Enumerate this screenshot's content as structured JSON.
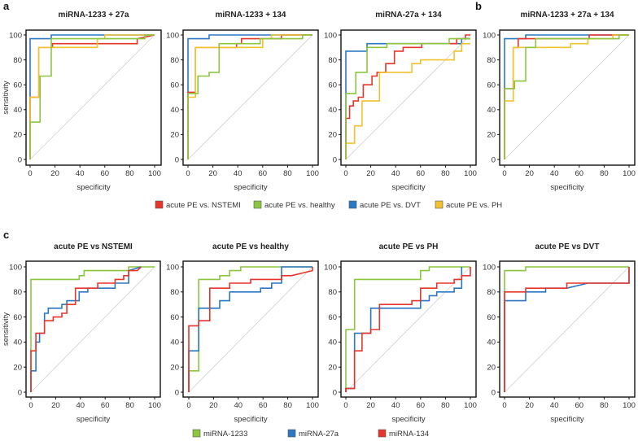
{
  "panel_labels": {
    "a": "a",
    "b": "b",
    "c": "c"
  },
  "legend_top": [
    {
      "label": "acute PE vs. NSTEMI",
      "color": "#e8352b"
    },
    {
      "label": "acute PE vs. healthy",
      "color": "#8cc63f"
    },
    {
      "label": "acute PE vs. DVT",
      "color": "#2a78c4"
    },
    {
      "label": "acute PE vs. PH",
      "color": "#f2c12e"
    }
  ],
  "legend_bottom": [
    {
      "label": "miRNA-1233",
      "color": "#8cc63f"
    },
    {
      "label": "miRNA-27a",
      "color": "#2a78c4"
    },
    {
      "label": "miRNA-134",
      "color": "#e8352b"
    }
  ],
  "chart_data": [
    {
      "type": "line",
      "title": "miRNA-1233 + 27a",
      "xlabel": "specificity",
      "ylabel": "sensitivity",
      "xlim": [
        0,
        100
      ],
      "ylim": [
        0,
        100
      ],
      "xticks": [
        0,
        20,
        40,
        60,
        80,
        100
      ],
      "yticks": [
        0,
        20,
        40,
        60,
        80,
        100
      ],
      "diagonal": true,
      "series": [
        {
          "name": "acute PE vs. DVT",
          "color": "#2a78c4",
          "x": [
            0,
            0,
            17,
            17,
            60,
            100
          ],
          "y": [
            0,
            97,
            97,
            100,
            100,
            100
          ]
        },
        {
          "name": "acute PE vs. NSTEMI",
          "color": "#e8352b",
          "x": [
            0,
            0,
            7,
            7,
            18,
            18,
            86,
            86,
            100
          ],
          "y": [
            0,
            50,
            50,
            90,
            90,
            93,
            93,
            97,
            100
          ]
        },
        {
          "name": "acute PE vs. PH",
          "color": "#f2c12e",
          "x": [
            0,
            0,
            7,
            7,
            54,
            54,
            60,
            60,
            100
          ],
          "y": [
            0,
            50,
            50,
            90,
            90,
            97,
            97,
            100,
            100
          ]
        },
        {
          "name": "acute PE vs. healthy",
          "color": "#8cc63f",
          "x": [
            0,
            0,
            8,
            8,
            17,
            17,
            92,
            92,
            100
          ],
          "y": [
            0,
            30,
            30,
            67,
            67,
            97,
            97,
            100,
            100
          ]
        }
      ]
    },
    {
      "type": "line",
      "title": "miRNA-1233 + 134",
      "xlabel": "specificity",
      "ylabel": "",
      "xlim": [
        0,
        100
      ],
      "ylim": [
        0,
        100
      ],
      "xticks": [
        0,
        20,
        40,
        60,
        80,
        100
      ],
      "yticks": [
        0,
        20,
        40,
        60,
        80,
        100
      ],
      "diagonal": true,
      "series": [
        {
          "name": "acute PE vs. DVT",
          "color": "#2a78c4",
          "x": [
            0,
            0,
            17,
            17,
            67,
            100
          ],
          "y": [
            0,
            97,
            97,
            100,
            100,
            100
          ]
        },
        {
          "name": "acute PE vs. NSTEMI",
          "color": "#e8352b",
          "x": [
            0,
            0,
            6,
            6,
            39,
            39,
            43,
            43,
            75,
            75,
            100
          ],
          "y": [
            0,
            54,
            54,
            90,
            90,
            93,
            93,
            97,
            97,
            100,
            100
          ]
        },
        {
          "name": "acute PE vs. PH",
          "color": "#f2c12e",
          "x": [
            0,
            0,
            6,
            6,
            60,
            60,
            67,
            67,
            100
          ],
          "y": [
            0,
            50,
            50,
            90,
            90,
            97,
            97,
            100,
            100
          ]
        },
        {
          "name": "acute PE vs. healthy",
          "color": "#8cc63f",
          "x": [
            0,
            0,
            8,
            8,
            17,
            17,
            25,
            25,
            58,
            58,
            92,
            92,
            100
          ],
          "y": [
            0,
            53,
            53,
            67,
            67,
            70,
            70,
            93,
            93,
            97,
            97,
            100,
            100
          ]
        }
      ]
    },
    {
      "type": "line",
      "title": "miRNA-27a + 134",
      "xlabel": "specificity",
      "ylabel": "",
      "xlim": [
        0,
        100
      ],
      "ylim": [
        0,
        100
      ],
      "xticks": [
        0,
        20,
        40,
        60,
        80,
        100
      ],
      "yticks": [
        0,
        20,
        40,
        60,
        80,
        100
      ],
      "diagonal": true,
      "series": [
        {
          "name": "acute PE vs. DVT",
          "color": "#2a78c4",
          "x": [
            0,
            0,
            17,
            17,
            93,
            93,
            100
          ],
          "y": [
            0,
            87,
            87,
            93,
            93,
            97,
            97
          ]
        },
        {
          "name": "acute PE vs. NSTEMI",
          "color": "#e8352b",
          "x": [
            0,
            0,
            3,
            3,
            6,
            6,
            10,
            10,
            14,
            14,
            21,
            21,
            25,
            25,
            32,
            32,
            39,
            39,
            46,
            46,
            61,
            61,
            89,
            89,
            96,
            96,
            100
          ],
          "y": [
            0,
            33,
            33,
            43,
            43,
            47,
            47,
            50,
            50,
            60,
            60,
            67,
            67,
            70,
            70,
            77,
            77,
            87,
            87,
            90,
            90,
            93,
            93,
            97,
            97,
            100,
            100
          ]
        },
        {
          "name": "acute PE vs. PH",
          "color": "#f2c12e",
          "x": [
            0,
            0,
            7,
            7,
            13,
            13,
            27,
            27,
            53,
            53,
            60,
            60,
            87,
            87,
            93,
            93,
            100
          ],
          "y": [
            0,
            13,
            13,
            27,
            27,
            47,
            47,
            70,
            70,
            77,
            77,
            80,
            80,
            87,
            87,
            93,
            93
          ]
        },
        {
          "name": "acute PE vs. healthy",
          "color": "#8cc63f",
          "x": [
            0,
            0,
            8,
            8,
            17,
            17,
            33,
            33,
            83,
            83,
            100
          ],
          "y": [
            0,
            53,
            53,
            70,
            70,
            90,
            90,
            93,
            93,
            97,
            97
          ]
        }
      ]
    },
    {
      "type": "line",
      "title": "miRNA-1233 + 27a + 134",
      "xlabel": "specificity",
      "ylabel": "",
      "xlim": [
        0,
        100
      ],
      "ylim": [
        0,
        100
      ],
      "xticks": [
        0,
        20,
        40,
        60,
        80,
        100
      ],
      "yticks": [
        0,
        20,
        40,
        60,
        80,
        100
      ],
      "diagonal": true,
      "series": [
        {
          "name": "acute PE vs. DVT",
          "color": "#2a78c4",
          "x": [
            0,
            0,
            17,
            17,
            68,
            100
          ],
          "y": [
            0,
            97,
            97,
            100,
            100,
            100
          ]
        },
        {
          "name": "acute PE vs. NSTEMI",
          "color": "#e8352b",
          "x": [
            0,
            0,
            7,
            7,
            11,
            11,
            68,
            68,
            100
          ],
          "y": [
            0,
            57,
            57,
            90,
            90,
            97,
            97,
            100,
            100
          ]
        },
        {
          "name": "acute PE vs. PH",
          "color": "#f2c12e",
          "x": [
            0,
            0,
            7,
            7,
            53,
            53,
            67,
            67,
            87,
            87,
            100
          ],
          "y": [
            0,
            47,
            47,
            90,
            90,
            93,
            93,
            97,
            97,
            100,
            100
          ]
        },
        {
          "name": "acute PE vs. healthy",
          "color": "#8cc63f",
          "x": [
            0,
            0,
            8,
            8,
            17,
            17,
            25,
            25,
            92,
            92,
            100
          ],
          "y": [
            0,
            57,
            57,
            63,
            63,
            90,
            90,
            97,
            97,
            100,
            100
          ]
        }
      ]
    },
    {
      "type": "line",
      "title": "acute PE vs NSTEMI",
      "xlabel": "specificity",
      "ylabel": "sensitivity",
      "xlim": [
        0,
        100
      ],
      "ylim": [
        0,
        100
      ],
      "xticks": [
        0,
        20,
        40,
        60,
        80,
        100
      ],
      "yticks": [
        0,
        20,
        40,
        60,
        80,
        100
      ],
      "diagonal": true,
      "series": [
        {
          "name": "miRNA-1233",
          "color": "#8cc63f",
          "x": [
            0,
            0,
            39,
            39,
            43,
            43,
            79,
            79,
            100
          ],
          "y": [
            0,
            90,
            90,
            93,
            93,
            97,
            97,
            100,
            100
          ]
        },
        {
          "name": "miRNA-27a",
          "color": "#2a78c4",
          "x": [
            0,
            0,
            4,
            4,
            7,
            7,
            11,
            11,
            14,
            14,
            25,
            25,
            29,
            29,
            39,
            39,
            46,
            46,
            54,
            54,
            68,
            68,
            75,
            75,
            79,
            79,
            89
          ],
          "y": [
            0,
            17,
            17,
            40,
            40,
            47,
            47,
            63,
            63,
            67,
            67,
            70,
            70,
            73,
            73,
            80,
            80,
            83,
            83,
            83,
            83,
            87,
            87,
            87,
            87,
            97,
            100
          ]
        },
        {
          "name": "miRNA-134",
          "color": "#e8352b",
          "x": [
            0,
            0,
            4,
            4,
            11,
            11,
            18,
            18,
            25,
            25,
            29,
            29,
            36,
            36,
            54,
            54,
            68,
            68,
            75,
            75,
            79,
            79,
            86,
            89
          ],
          "y": [
            0,
            33,
            33,
            47,
            47,
            57,
            57,
            60,
            60,
            63,
            63,
            70,
            70,
            83,
            83,
            87,
            87,
            90,
            90,
            93,
            93,
            97,
            97,
            100
          ]
        }
      ]
    },
    {
      "type": "line",
      "title": "acute PE vs healthy",
      "xlabel": "specificity",
      "ylabel": "",
      "xlim": [
        0,
        100
      ],
      "ylim": [
        0,
        100
      ],
      "xticks": [
        0,
        20,
        40,
        60,
        80,
        100
      ],
      "yticks": [
        0,
        20,
        40,
        60,
        80,
        100
      ],
      "diagonal": true,
      "series": [
        {
          "name": "miRNA-1233",
          "color": "#8cc63f",
          "x": [
            0,
            0,
            8,
            8,
            25,
            25,
            33,
            33,
            42,
            42,
            100
          ],
          "y": [
            0,
            17,
            17,
            90,
            90,
            93,
            93,
            97,
            97,
            100,
            100
          ]
        },
        {
          "name": "miRNA-27a",
          "color": "#2a78c4",
          "x": [
            0,
            0,
            8,
            8,
            25,
            25,
            33,
            33,
            58,
            58,
            67,
            67,
            75,
            75,
            100
          ],
          "y": [
            0,
            33,
            33,
            67,
            67,
            73,
            73,
            80,
            80,
            83,
            83,
            87,
            87,
            100,
            100
          ]
        },
        {
          "name": "miRNA-134",
          "color": "#e8352b",
          "x": [
            0,
            0,
            8,
            8,
            17,
            17,
            33,
            33,
            50,
            50,
            75,
            75,
            83,
            100,
            100
          ],
          "y": [
            0,
            53,
            53,
            57,
            57,
            83,
            83,
            87,
            87,
            90,
            90,
            93,
            93,
            97,
            100
          ]
        }
      ]
    },
    {
      "type": "line",
      "title": "acute PE vs PH",
      "xlabel": "specificity",
      "ylabel": "",
      "xlim": [
        0,
        100
      ],
      "ylim": [
        0,
        100
      ],
      "xticks": [
        0,
        20,
        40,
        60,
        80,
        100
      ],
      "yticks": [
        0,
        20,
        40,
        60,
        80,
        100
      ],
      "diagonal": true,
      "series": [
        {
          "name": "miRNA-1233",
          "color": "#8cc63f",
          "x": [
            0,
            0,
            7,
            7,
            60,
            60,
            67,
            67,
            100
          ],
          "y": [
            0,
            50,
            50,
            90,
            90,
            97,
            97,
            100,
            100
          ]
        },
        {
          "name": "miRNA-27a",
          "color": "#2a78c4",
          "x": [
            0,
            0,
            7,
            7,
            20,
            20,
            60,
            60,
            67,
            67,
            73,
            73,
            87,
            87,
            93,
            93
          ],
          "y": [
            0,
            3,
            3,
            47,
            47,
            67,
            67,
            73,
            73,
            77,
            77,
            80,
            80,
            83,
            83,
            100
          ]
        },
        {
          "name": "miRNA-134",
          "color": "#e8352b",
          "x": [
            0,
            0,
            7,
            7,
            13,
            13,
            20,
            20,
            27,
            27,
            53,
            53,
            60,
            60,
            73,
            73,
            87,
            87,
            93,
            93,
            100,
            100
          ],
          "y": [
            0,
            3,
            3,
            33,
            33,
            47,
            47,
            50,
            50,
            70,
            70,
            73,
            73,
            83,
            83,
            87,
            87,
            90,
            90,
            93,
            93,
            100
          ]
        }
      ]
    },
    {
      "type": "line",
      "title": "acute PE vs DVT",
      "xlabel": "specificity",
      "ylabel": "",
      "xlim": [
        0,
        100
      ],
      "ylim": [
        0,
        100
      ],
      "xticks": [
        0,
        20,
        40,
        60,
        80,
        100
      ],
      "yticks": [
        0,
        20,
        40,
        60,
        80,
        100
      ],
      "diagonal": true,
      "series": [
        {
          "name": "miRNA-1233",
          "color": "#8cc63f",
          "x": [
            0,
            0,
            17,
            17,
            100
          ],
          "y": [
            0,
            97,
            97,
            100,
            100
          ]
        },
        {
          "name": "miRNA-27a",
          "color": "#2a78c4",
          "x": [
            0,
            0,
            17,
            17,
            33,
            33,
            50,
            67,
            100,
            100
          ],
          "y": [
            0,
            73,
            73,
            80,
            80,
            83,
            83,
            87,
            87,
            100
          ]
        },
        {
          "name": "miRNA-134",
          "color": "#e8352b",
          "x": [
            0,
            0,
            17,
            17,
            50,
            50,
            100,
            100
          ],
          "y": [
            0,
            80,
            80,
            83,
            83,
            87,
            87,
            100
          ]
        }
      ]
    }
  ]
}
